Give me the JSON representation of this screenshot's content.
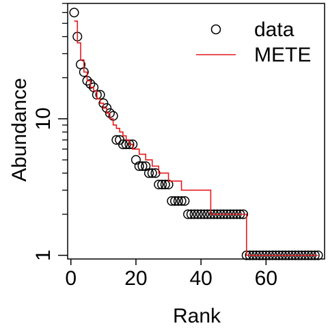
{
  "chart_data": {
    "type": "scatter",
    "title": "",
    "xlabel": "Rank",
    "ylabel": "Abundance",
    "xlim": [
      -1,
      78
    ],
    "ylim": [
      0.94,
      70
    ],
    "y_scale": "log",
    "x_ticks": [
      {
        "value": 0,
        "label": "0"
      },
      {
        "value": 20,
        "label": "20"
      },
      {
        "value": 40,
        "label": "40"
      },
      {
        "value": 60,
        "label": "60"
      }
    ],
    "y_ticks": [
      {
        "value": 1,
        "label": "1"
      },
      {
        "value": 10,
        "label": "10"
      }
    ],
    "grid": false,
    "legend": {
      "position": "top-right",
      "entries": [
        {
          "label": "data",
          "kind": "point",
          "color": "#000000"
        },
        {
          "label": "METE",
          "kind": "line",
          "color": "#e41a1c"
        }
      ]
    },
    "series": [
      {
        "name": "data",
        "kind": "points",
        "color": "#000000",
        "x": [
          1,
          2,
          3,
          4,
          5,
          6,
          7,
          8,
          9,
          10,
          11,
          12,
          13,
          14,
          15,
          16,
          17,
          18,
          19,
          20,
          21,
          22,
          23,
          24,
          25,
          26,
          27,
          28,
          29,
          30,
          31,
          32,
          33,
          34,
          35,
          36,
          37,
          38,
          39,
          40,
          41,
          42,
          43,
          44,
          45,
          46,
          47,
          48,
          49,
          50,
          51,
          52,
          53,
          54,
          55,
          56,
          57,
          58,
          59,
          60,
          61,
          62,
          63,
          64,
          65,
          66,
          67,
          68,
          69,
          70,
          71,
          72,
          73,
          74,
          75,
          76
        ],
        "y": [
          60,
          40,
          25,
          22,
          19,
          18,
          17,
          15,
          15,
          13,
          12,
          11,
          10.5,
          7,
          7,
          6.5,
          6.5,
          6.5,
          6.5,
          5,
          4.5,
          4.5,
          4.5,
          4,
          4,
          4,
          3.3,
          3.3,
          3.3,
          3.3,
          2.5,
          2.5,
          2.5,
          2.5,
          2.5,
          2,
          2,
          2,
          2,
          2,
          2,
          2,
          2,
          2,
          2,
          2,
          2,
          2,
          2,
          2,
          2,
          2,
          2,
          1,
          1,
          1,
          1,
          1,
          1,
          1,
          1,
          1,
          1,
          1,
          1,
          1,
          1,
          1,
          1,
          1,
          1,
          1,
          1,
          1,
          1,
          1
        ]
      },
      {
        "name": "METE",
        "kind": "step-line",
        "color": "#e41a1c",
        "x": [
          1,
          2,
          3,
          4,
          5,
          6,
          7,
          8,
          9,
          10,
          11,
          12,
          13,
          14,
          15,
          16,
          17,
          18,
          19,
          20,
          21,
          22,
          23,
          24,
          25,
          26,
          27,
          28,
          29,
          30,
          31,
          32,
          33,
          34,
          35,
          36,
          37,
          38,
          39,
          40,
          41,
          42,
          43,
          44,
          45,
          46,
          47,
          48,
          49,
          50,
          51,
          52,
          53,
          54,
          55,
          56,
          57,
          58,
          59,
          60,
          61,
          62,
          63,
          64,
          65,
          66,
          67,
          68,
          69,
          70,
          71,
          72,
          73,
          74,
          75,
          76
        ],
        "y": [
          52,
          36,
          27,
          22,
          19,
          17,
          16,
          14,
          13,
          12,
          11,
          10,
          9,
          8.5,
          8,
          7.5,
          7,
          6.5,
          6,
          6,
          5.5,
          5.5,
          5,
          5,
          4.5,
          4.5,
          4,
          4,
          4,
          3.5,
          3.5,
          3.5,
          3.5,
          3,
          3,
          3,
          3,
          3,
          3,
          3,
          3,
          3,
          2,
          2,
          2,
          2,
          2,
          2,
          2,
          2,
          2,
          2,
          2,
          1,
          1,
          1,
          1,
          1,
          1,
          1,
          1,
          1,
          1,
          1,
          1,
          1,
          1,
          1,
          1,
          1,
          1,
          1,
          1,
          1,
          1,
          1
        ]
      }
    ]
  }
}
